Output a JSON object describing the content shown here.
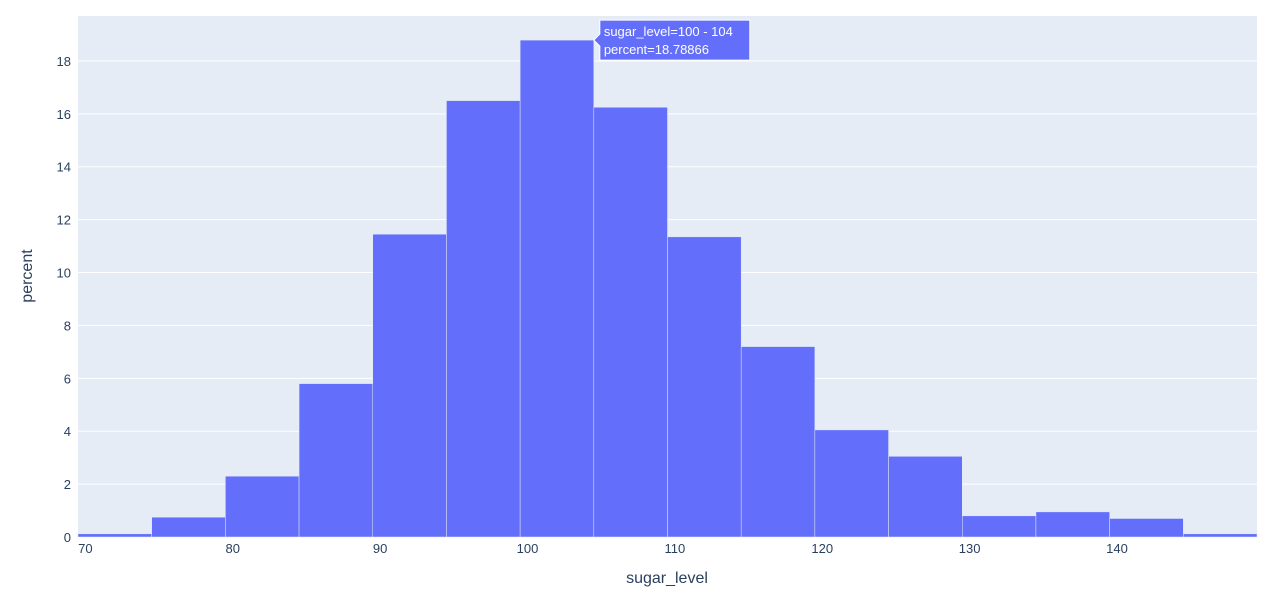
{
  "chart_data": {
    "type": "bar",
    "subtype": "histogram",
    "xlabel": "sugar_level",
    "ylabel": "percent",
    "xlim": [
      69.5,
      149.5
    ],
    "ylim": [
      0,
      19.7
    ],
    "x_ticks": [
      70,
      80,
      90,
      100,
      110,
      120,
      130,
      140
    ],
    "y_ticks": [
      0,
      2,
      4,
      6,
      8,
      10,
      12,
      14,
      16,
      18
    ],
    "bins": [
      {
        "x0": 69.5,
        "x1": 74.5,
        "value": 0.12
      },
      {
        "x0": 74.5,
        "x1": 79.5,
        "value": 0.75
      },
      {
        "x0": 79.5,
        "x1": 84.5,
        "value": 2.3
      },
      {
        "x0": 84.5,
        "x1": 89.5,
        "value": 5.8
      },
      {
        "x0": 89.5,
        "x1": 94.5,
        "value": 11.45
      },
      {
        "x0": 94.5,
        "x1": 99.5,
        "value": 16.5
      },
      {
        "x0": 99.5,
        "x1": 104.5,
        "value": 18.78866
      },
      {
        "x0": 104.5,
        "x1": 109.5,
        "value": 16.25
      },
      {
        "x0": 109.5,
        "x1": 114.5,
        "value": 11.35
      },
      {
        "x0": 114.5,
        "x1": 119.5,
        "value": 7.2
      },
      {
        "x0": 119.5,
        "x1": 124.5,
        "value": 4.05
      },
      {
        "x0": 124.5,
        "x1": 129.5,
        "value": 3.05
      },
      {
        "x0": 129.5,
        "x1": 134.5,
        "value": 0.8
      },
      {
        "x0": 134.5,
        "x1": 139.5,
        "value": 0.95
      },
      {
        "x0": 139.5,
        "x1": 144.5,
        "value": 0.7
      },
      {
        "x0": 144.5,
        "x1": 149.5,
        "value": 0.12
      }
    ],
    "grid": true,
    "bar_color": "#636efa",
    "plot_background": "#e5ecf6",
    "hover": {
      "bin_index": 6,
      "line1": "sugar_level=100 - 104",
      "line2": "percent=18.78866"
    }
  }
}
